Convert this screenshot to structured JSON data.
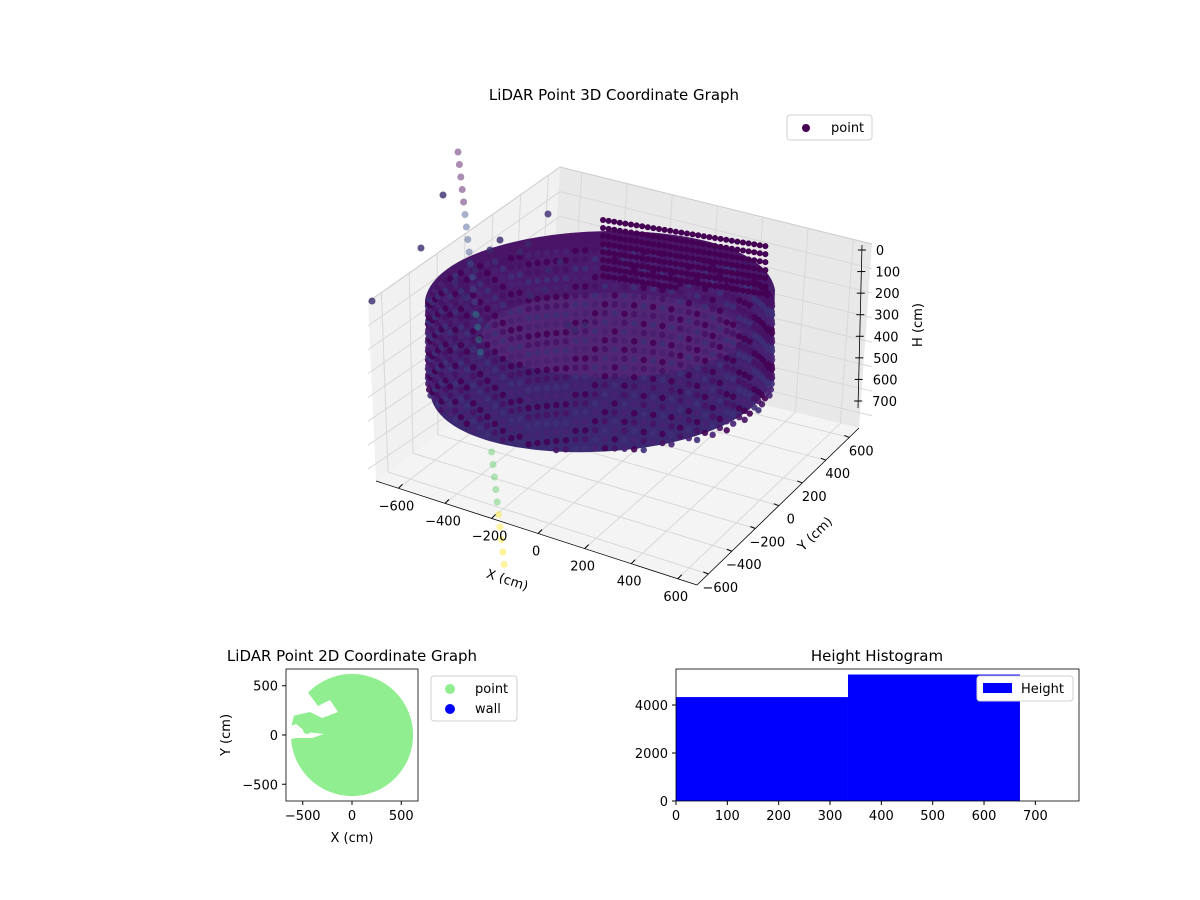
{
  "chart_data": [
    {
      "type": "scatter",
      "title": "LiDAR Point 3D Coordinate Graph",
      "projection": "3d",
      "xlabel": "X (cm)",
      "ylabel": "Y (cm)",
      "zlabel": "H (cm)",
      "xlim": [
        -650,
        650
      ],
      "ylim": [
        -650,
        650
      ],
      "zlim": [
        750,
        0
      ],
      "x_ticks": [
        "−600",
        "−400",
        "−200",
        "0",
        "200",
        "400",
        "600"
      ],
      "y_ticks": [
        "−600",
        "−400",
        "−200",
        "0",
        "200",
        "400",
        "600"
      ],
      "z_ticks": [
        "0",
        "100",
        "200",
        "300",
        "400",
        "500",
        "600",
        "700"
      ],
      "legend": {
        "position": "top-right",
        "entries": [
          {
            "label": "point",
            "color": "#440154"
          }
        ]
      },
      "colormap": "viridis",
      "colormap_stops": [
        "#440154",
        "#3b528b",
        "#21918c",
        "#5ec962",
        "#fde725"
      ],
      "series": [
        {
          "name": "point",
          "shape": "ring",
          "ring_radius_cm": 600,
          "height_range_cm": [
            0,
            670
          ],
          "color": "#440154"
        }
      ]
    },
    {
      "type": "scatter",
      "title": "LiDAR Point 2D Coordinate Graph",
      "xlabel": "X (cm)",
      "ylabel": "Y (cm)",
      "xlim": [
        -670,
        670
      ],
      "ylim": [
        -670,
        670
      ],
      "x_ticks": [
        -500,
        0,
        500
      ],
      "y_ticks": [
        -500,
        0,
        500
      ],
      "legend": {
        "position": "outside-right",
        "entries": [
          {
            "label": "point",
            "color": "#90ee90"
          },
          {
            "label": "wall",
            "color": "#0000ff"
          }
        ]
      },
      "series": [
        {
          "name": "point",
          "shape": "disk",
          "radius_cm": 620,
          "color": "#90ee90"
        }
      ]
    },
    {
      "type": "bar",
      "title": "Height Histogram",
      "xlim": [
        0,
        785
      ],
      "ylim": [
        0,
        5500
      ],
      "x_ticks": [
        0,
        100,
        200,
        300,
        400,
        500,
        600,
        700
      ],
      "y_ticks": [
        0,
        2000,
        4000
      ],
      "legend": {
        "position": "top-right",
        "entries": [
          {
            "label": "Height",
            "color": "#0000ff"
          }
        ]
      },
      "bins": [
        {
          "start": 0,
          "end": 335,
          "count": 4330
        },
        {
          "start": 335,
          "end": 670,
          "count": 5270
        }
      ],
      "color": "#0000ff"
    }
  ]
}
